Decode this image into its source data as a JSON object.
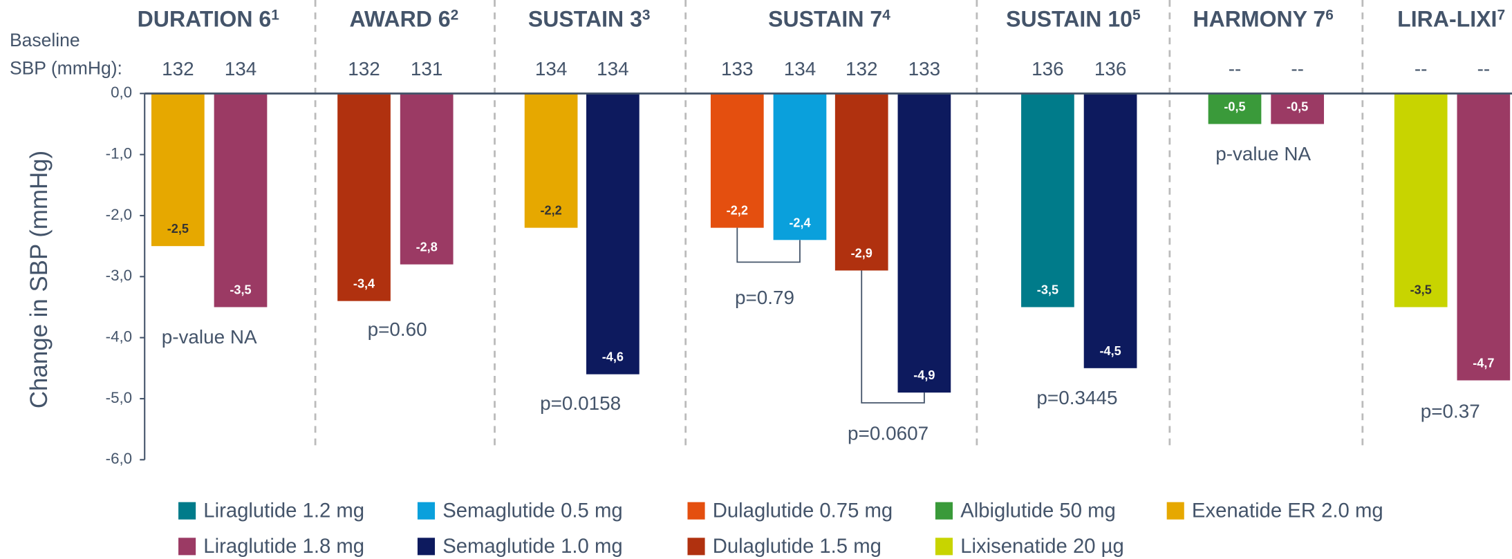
{
  "chart_data": {
    "type": "bar",
    "y_label": "Change in SBP (mmHg)",
    "baseline_label": [
      "Baseline",
      "SBP (mmHg):"
    ],
    "ylim": [
      -6,
      0
    ],
    "yticks": [
      {
        "value": 0,
        "label": "0,0"
      },
      {
        "value": -1,
        "label": "-1,0"
      },
      {
        "value": -2,
        "label": "-2,0"
      },
      {
        "value": -3,
        "label": "-3,0"
      },
      {
        "value": -4,
        "label": "-4,0"
      },
      {
        "value": -5,
        "label": "-5,0"
      },
      {
        "value": -6,
        "label": "-6,0"
      }
    ],
    "legend": [
      {
        "name": "Liraglutide 1.2 mg",
        "color": "#007b8a"
      },
      {
        "name": "Semaglutide 0.5 mg",
        "color": "#0aa0dc"
      },
      {
        "name": "Dulaglutide 0.75 mg",
        "color": "#e44f0f"
      },
      {
        "name": "Albiglutide 50 mg",
        "color": "#3a9a3a"
      },
      {
        "name": "Exenatide ER 2.0 mg",
        "color": "#e6a800"
      },
      {
        "name": "Liraglutide 1.8 mg",
        "color": "#9b3a64"
      },
      {
        "name": "Semaglutide 1.0 mg",
        "color": "#0d1a5e"
      },
      {
        "name": "Dulaglutide 1.5 mg",
        "color": "#b0310f"
      },
      {
        "name": "Lixisenatide 20 µg",
        "color": "#c8d400"
      }
    ],
    "groups": [
      {
        "title": "DURATION 6",
        "sup": "1",
        "baselines": [
          132,
          134
        ],
        "p_values": [
          "p-value NA"
        ],
        "bars": [
          {
            "color": "#e6a800",
            "value": -2.5,
            "value_label": "-2,5"
          },
          {
            "color": "#9b3a64",
            "value": -3.5,
            "value_label": "-3,5"
          }
        ]
      },
      {
        "title": "AWARD 6",
        "sup": "2",
        "baselines": [
          132,
          131
        ],
        "p_values": [
          "p=0.60"
        ],
        "bars": [
          {
            "color": "#b0310f",
            "value": -3.4,
            "value_label": "-3,4"
          },
          {
            "color": "#9b3a64",
            "value": -2.8,
            "value_label": "-2,8"
          }
        ]
      },
      {
        "title": "SUSTAIN 3",
        "sup": "3",
        "baselines": [
          134,
          134
        ],
        "p_values": [
          "p=0.0158"
        ],
        "bars": [
          {
            "color": "#e6a800",
            "value": -2.2,
            "value_label": "-2,2"
          },
          {
            "color": "#0d1a5e",
            "value": -4.6,
            "value_label": "-4,6"
          }
        ]
      },
      {
        "title": "SUSTAIN 7",
        "sup": "4",
        "baselines": [
          133,
          134,
          132,
          133
        ],
        "p_values": [
          "p=0.79",
          "p=0.0607"
        ],
        "bars": [
          {
            "color": "#e44f0f",
            "value": -2.2,
            "value_label": "-2,2"
          },
          {
            "color": "#0aa0dc",
            "value": -2.4,
            "value_label": "-2,4"
          },
          {
            "color": "#b0310f",
            "value": -2.9,
            "value_label": "-2,9"
          },
          {
            "color": "#0d1a5e",
            "value": -4.9,
            "value_label": "-4,9"
          }
        ]
      },
      {
        "title": "SUSTAIN 10",
        "sup": "5",
        "baselines": [
          136,
          136
        ],
        "p_values": [
          "p=0.3445"
        ],
        "bars": [
          {
            "color": "#007b8a",
            "value": -3.5,
            "value_label": "-3,5"
          },
          {
            "color": "#0d1a5e",
            "value": -4.5,
            "value_label": "-4,5"
          }
        ]
      },
      {
        "title": "HARMONY 7",
        "sup": "6",
        "baselines": [
          "--",
          "--"
        ],
        "p_values": [
          "p-value NA"
        ],
        "bars": [
          {
            "color": "#3a9a3a",
            "value": -0.5,
            "value_label": "-0,5"
          },
          {
            "color": "#9b3a64",
            "value": -0.5,
            "value_label": "-0,5"
          }
        ]
      },
      {
        "title": "LIRA-LIXI",
        "sup": "7",
        "baselines": [
          "--",
          "--"
        ],
        "p_values": [
          "p=0.37"
        ],
        "bars": [
          {
            "color": "#c8d400",
            "value": -3.5,
            "value_label": "-3,5"
          },
          {
            "color": "#9b3a64",
            "value": -4.7,
            "value_label": "-4,7"
          }
        ]
      }
    ]
  }
}
